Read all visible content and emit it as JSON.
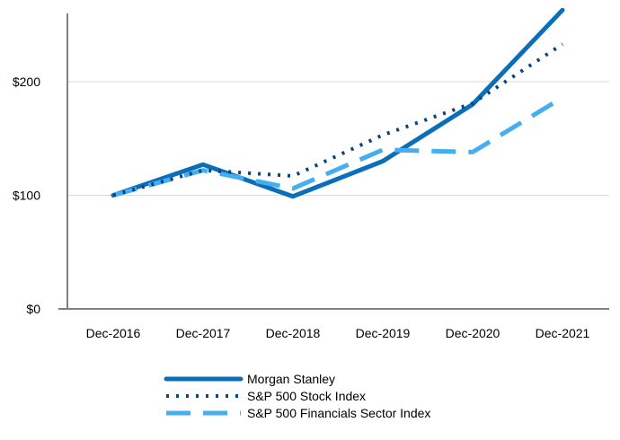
{
  "chart_data": {
    "type": "line",
    "x": [
      "Dec-2016",
      "Dec-2017",
      "Dec-2018",
      "Dec-2019",
      "Dec-2020",
      "Dec-2021"
    ],
    "yticks": [
      "$0",
      "$100",
      "$200"
    ],
    "ylim": [
      0,
      260
    ],
    "grid": true,
    "legend_position": "bottom",
    "series": [
      {
        "name": "Morgan Stanley",
        "values": [
          100,
          127,
          99,
          130,
          180,
          263
        ],
        "color": "#0a6fb8",
        "style": "solid"
      },
      {
        "name": "S&P 500 Stock Index",
        "values": [
          100,
          122,
          117,
          153,
          181,
          233
        ],
        "color": "#08457e",
        "style": "dotted"
      },
      {
        "name": "S&P 500 Financials Sector Index",
        "values": [
          100,
          122,
          106,
          140,
          138,
          186
        ],
        "color": "#45aef0",
        "style": "dashed"
      }
    ]
  }
}
